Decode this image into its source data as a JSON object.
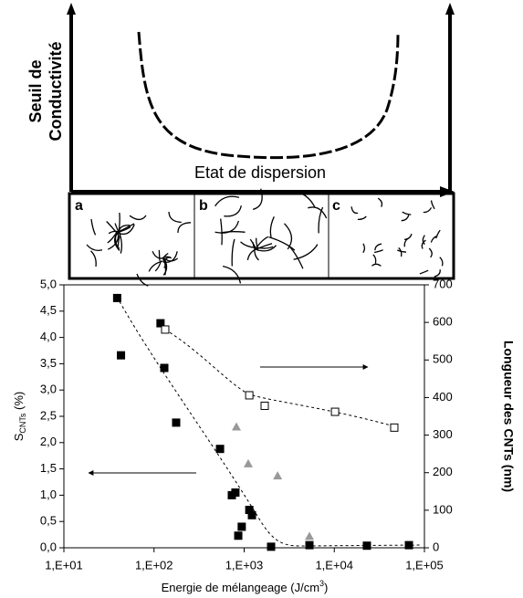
{
  "schematic": {
    "y_label_line1": "Seuil de",
    "y_label_line2": "Conductivité",
    "x_label": "Etat de dispersion",
    "panels": [
      "a",
      "b",
      "c"
    ]
  },
  "chart_data": {
    "type": "scatter",
    "x_label": "Energie de mélangeage (J/cm",
    "x_label_sup": "3",
    "x_label_end": ")",
    "y_label": "S",
    "y_label_sub": "CNTs",
    "y_label_end": " (%)",
    "y2_label": "Longueur des CNTs (nm)",
    "xlog": true,
    "grid": false,
    "xlim": [
      10,
      100000
    ],
    "xticks": [
      {
        "value": 10,
        "label": "1,E+01"
      },
      {
        "value": 100,
        "label": "1,E+02"
      },
      {
        "value": 1000,
        "label": "1,E+03"
      },
      {
        "value": 10000,
        "label": "1,E+04"
      },
      {
        "value": 100000,
        "label": "1,E+05"
      }
    ],
    "ylim": [
      0,
      5
    ],
    "yticks": [
      {
        "value": 0,
        "label": "0,0"
      },
      {
        "value": 0.5,
        "label": "0,5"
      },
      {
        "value": 1,
        "label": "1,0"
      },
      {
        "value": 1.5,
        "label": "1,5"
      },
      {
        "value": 2,
        "label": "2,0"
      },
      {
        "value": 2.5,
        "label": "2,5"
      },
      {
        "value": 3,
        "label": "3,0"
      },
      {
        "value": 3.5,
        "label": "3,5"
      },
      {
        "value": 4,
        "label": "4,0"
      },
      {
        "value": 4.5,
        "label": "4,5"
      },
      {
        "value": 5,
        "label": "5,0"
      }
    ],
    "y2lim": [
      0,
      700
    ],
    "y2ticks": [
      0,
      100,
      200,
      300,
      400,
      500,
      600,
      700
    ],
    "series": [
      {
        "color": "#000000",
        "marker": "square",
        "axis": "y",
        "x": [
          39,
          43,
          118,
          130,
          176,
          540,
          730,
          800,
          860,
          940,
          1140,
          1220,
          1990,
          5300,
          23000,
          67300
        ],
        "values": [
          4.75,
          3.66,
          4.27,
          3.42,
          2.38,
          1.88,
          1.0,
          1.05,
          0.23,
          0.4,
          0.72,
          0.62,
          0.02,
          0.05,
          0.04,
          0.05
        ]
      },
      {
        "color": "#ffffff",
        "marker": "open-square",
        "axis": "y2",
        "x": [
          133,
          1140,
          1690,
          10200,
          46300
        ],
        "values": [
          581,
          406,
          378,
          362,
          320
        ]
      },
      {
        "color": "#999999",
        "marker": "triangle",
        "axis": "y",
        "x": [
          820,
          1110,
          2350,
          5300
        ],
        "values": [
          2.3,
          1.6,
          1.37,
          0.22
        ]
      }
    ]
  }
}
